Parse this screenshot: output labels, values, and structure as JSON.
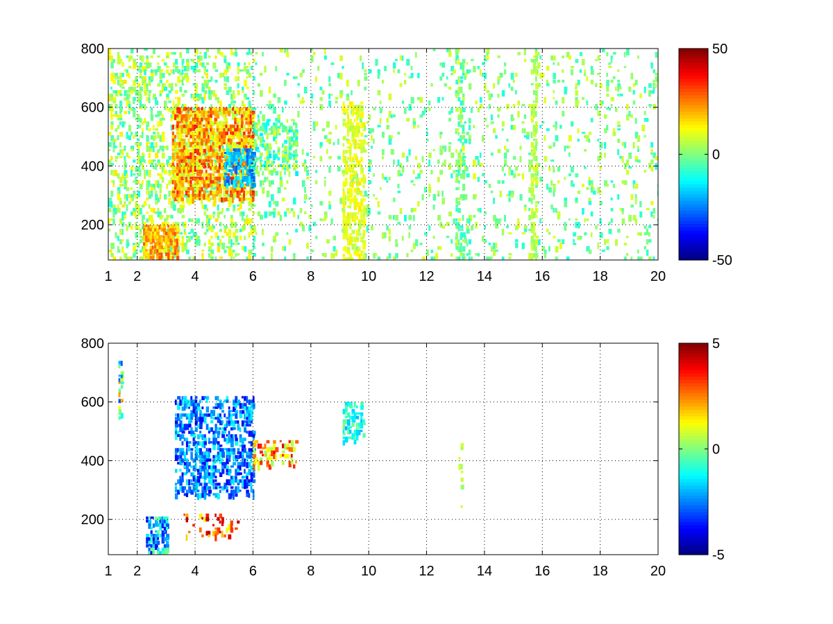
{
  "chart_data": [
    {
      "type": "heatmap",
      "title": "",
      "xlabel": "",
      "ylabel": "",
      "xlim": [
        1,
        20
      ],
      "ylim": [
        80,
        800
      ],
      "x_ticks": [
        1,
        2,
        4,
        6,
        8,
        10,
        12,
        14,
        16,
        18,
        20
      ],
      "x_tick_labels": [
        "1",
        "2",
        "4",
        "6",
        "8",
        "10",
        "12",
        "14",
        "16",
        "18",
        "20"
      ],
      "y_ticks": [
        200,
        400,
        600,
        800
      ],
      "y_tick_labels": [
        "200",
        "400",
        "600",
        "800"
      ],
      "grid": true,
      "colormap": "jet",
      "colorbar": {
        "min": -50,
        "max": 50,
        "ticks": [
          -50,
          0,
          50
        ],
        "tick_labels": [
          "-50",
          "0",
          "50"
        ],
        "placement": "right"
      },
      "features": [
        {
          "x_range": [
            1,
            6
          ],
          "y_range": [
            80,
            800
          ],
          "value_range": [
            -10,
            15
          ],
          "density": 0.3
        },
        {
          "x_range": [
            2.2,
            3.4
          ],
          "y_range": [
            85,
            200
          ],
          "value_range": [
            10,
            30
          ],
          "density": 0.8
        },
        {
          "x_range": [
            3.2,
            6
          ],
          "y_range": [
            290,
            600
          ],
          "value_range": [
            5,
            35
          ],
          "density": 0.75
        },
        {
          "x_range": [
            5,
            6
          ],
          "y_range": [
            340,
            460
          ],
          "value_range": [
            -30,
            -10
          ],
          "density": 0.6
        },
        {
          "x_range": [
            6,
            7.5
          ],
          "y_range": [
            380,
            560
          ],
          "value_range": [
            -15,
            10
          ],
          "density": 0.5
        },
        {
          "x_range": [
            6,
            20
          ],
          "y_range": [
            80,
            800
          ],
          "value_range": [
            -10,
            10
          ],
          "density": 0.1
        },
        {
          "x_range": [
            9.1,
            9.8
          ],
          "y_range": [
            80,
            620
          ],
          "value_range": [
            5,
            15
          ],
          "density": 0.5
        },
        {
          "x_range": [
            13,
            13.3
          ],
          "y_range": [
            80,
            800
          ],
          "value_range": [
            -10,
            10
          ],
          "density": 0.4
        },
        {
          "x_range": [
            15.6,
            15.8
          ],
          "y_range": [
            80,
            800
          ],
          "value_range": [
            0,
            10
          ],
          "density": 0.5
        }
      ]
    },
    {
      "type": "heatmap",
      "title": "",
      "xlabel": "",
      "ylabel": "",
      "xlim": [
        1,
        20
      ],
      "ylim": [
        80,
        800
      ],
      "x_ticks": [
        1,
        2,
        4,
        6,
        8,
        10,
        12,
        14,
        16,
        18,
        20
      ],
      "x_tick_labels": [
        "1",
        "2",
        "4",
        "6",
        "8",
        "10",
        "12",
        "14",
        "16",
        "18",
        "20"
      ],
      "y_ticks": [
        200,
        400,
        600,
        800
      ],
      "y_tick_labels": [
        "200",
        "400",
        "600",
        "800"
      ],
      "grid": true,
      "colormap": "jet",
      "colorbar": {
        "min": -5,
        "max": 5,
        "ticks": [
          -5,
          0,
          5
        ],
        "tick_labels": [
          "-5",
          "0",
          "5"
        ],
        "placement": "right"
      },
      "features": [
        {
          "x_range": [
            2.3,
            3.0
          ],
          "y_range": [
            90,
            210
          ],
          "value_range": [
            -4,
            0
          ],
          "density": 0.7
        },
        {
          "x_range": [
            3.3,
            6.0
          ],
          "y_range": [
            280,
            620
          ],
          "value_range": [
            -4,
            -1
          ],
          "density": 0.55
        },
        {
          "x_range": [
            6.0,
            7.5
          ],
          "y_range": [
            380,
            470
          ],
          "value_range": [
            0,
            4
          ],
          "density": 0.4
        },
        {
          "x_range": [
            3.6,
            5.5
          ],
          "y_range": [
            140,
            220
          ],
          "value_range": [
            1,
            4.5
          ],
          "density": 0.25
        },
        {
          "x_range": [
            1.35,
            1.45
          ],
          "y_range": [
            550,
            740
          ],
          "value_range": [
            -3,
            3
          ],
          "density": 0.6
        },
        {
          "x_range": [
            9.1,
            9.8
          ],
          "y_range": [
            470,
            600
          ],
          "value_range": [
            -2,
            0
          ],
          "density": 0.5
        },
        {
          "x_range": [
            13.1,
            13.2
          ],
          "y_range": [
            230,
            460
          ],
          "value_range": [
            0,
            1
          ],
          "density": 0.3
        }
      ]
    }
  ]
}
